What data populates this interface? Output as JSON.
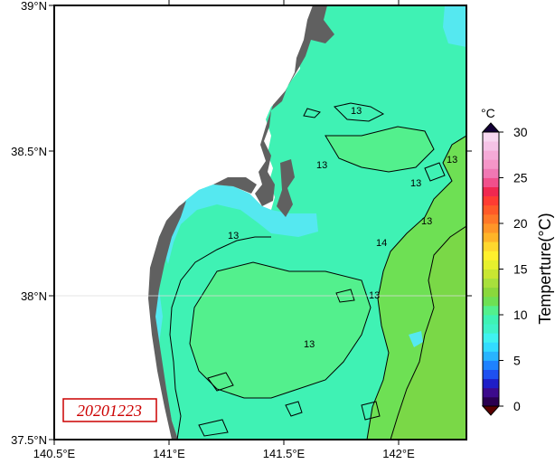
{
  "map": {
    "date_label": "20201223",
    "lon_ticks": [
      "140.5°E",
      "141°E",
      "141.5°E",
      "142°E"
    ],
    "lat_ticks": [
      "39°N",
      "38.5°N",
      "38°N",
      "37.5°N"
    ],
    "contour_labels": [
      "13",
      "13",
      "13",
      "13",
      "13",
      "13",
      "13",
      "13",
      "14"
    ],
    "colors": {
      "land": "#606060",
      "water_13c": "#3ff2b4",
      "water_14c": "#53f08d",
      "water_15c": "#6ee054",
      "water_16c": "#7ad847",
      "coastal_cold": "#55e8f0"
    }
  },
  "colorbar": {
    "unit": "°C",
    "title": "Temperture(°C)",
    "ticks": [
      "30",
      "25",
      "20",
      "15",
      "10",
      "5",
      "0"
    ],
    "range": [
      0,
      30
    ],
    "colors": [
      "#2a0050",
      "#3c0a8c",
      "#1e1ec8",
      "#1e50f0",
      "#1e82ff",
      "#28b4ff",
      "#32dcff",
      "#3ff2f0",
      "#3ff2c8",
      "#3ff2b4",
      "#53f08d",
      "#6ee054",
      "#8ad83c",
      "#a8e03c",
      "#c8e632",
      "#e6f02d",
      "#fff02d",
      "#ffd72d",
      "#ffb428",
      "#ff9628",
      "#ff7828",
      "#ff5a28",
      "#ff3c32",
      "#f02850",
      "#f0508c",
      "#f078b4",
      "#f596c8",
      "#f5aad7",
      "#f5c3e6",
      "#f8d7f0"
    ]
  }
}
